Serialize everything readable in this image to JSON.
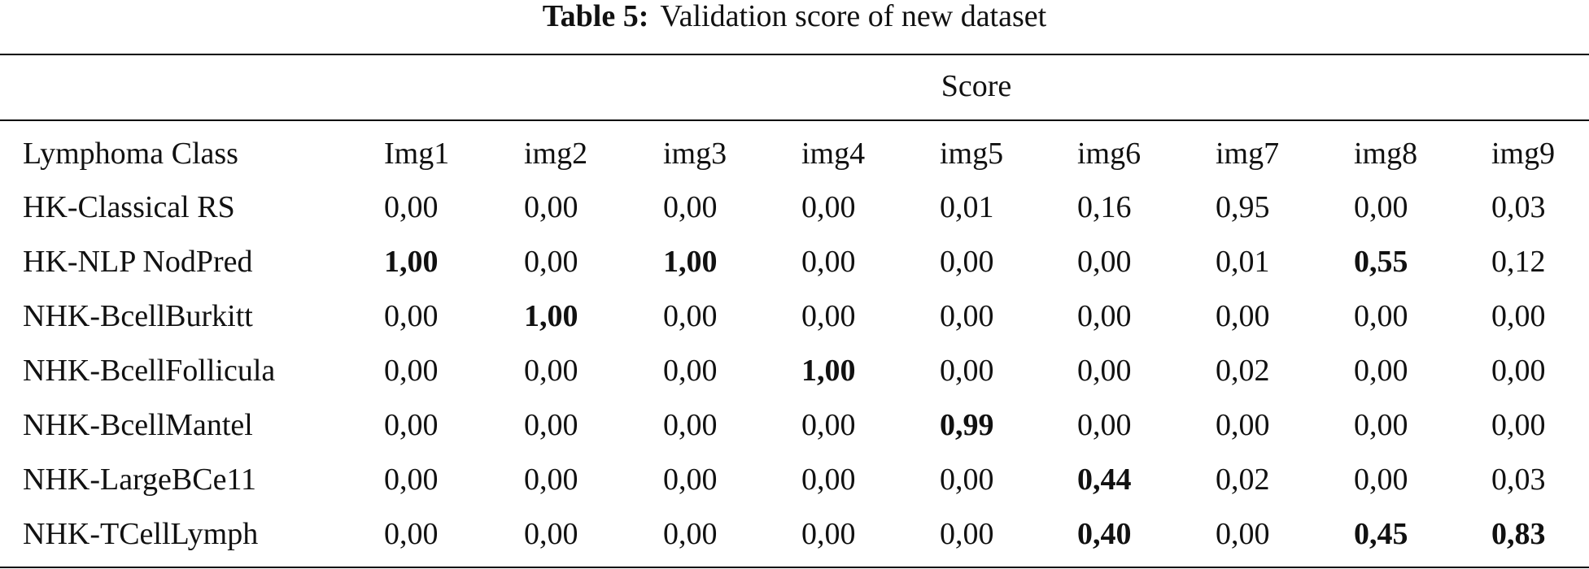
{
  "caption": {
    "label": "Table 5:",
    "text": "Validation score of new dataset"
  },
  "table": {
    "group_header": "Score",
    "columns": [
      "Lymphoma Class",
      "Img1",
      "img2",
      "img3",
      "img4",
      "img5",
      "img6",
      "img7",
      "img8",
      "img9"
    ],
    "rows": [
      {
        "label": "HK-Classical RS",
        "values": [
          "0,00",
          "0,00",
          "0,00",
          "0,00",
          "0,01",
          "0,16",
          "0,95",
          "0,00",
          "0,03"
        ],
        "bold": [
          false,
          false,
          false,
          false,
          false,
          false,
          false,
          false,
          false
        ]
      },
      {
        "label": "HK-NLP NodPred",
        "values": [
          "1,00",
          "0,00",
          "1,00",
          "0,00",
          "0,00",
          "0,00",
          "0,01",
          "0,55",
          "0,12"
        ],
        "bold": [
          true,
          false,
          true,
          false,
          false,
          false,
          false,
          true,
          false
        ]
      },
      {
        "label": "NHK-BcellBurkitt",
        "values": [
          "0,00",
          "1,00",
          "0,00",
          "0,00",
          "0,00",
          "0,00",
          "0,00",
          "0,00",
          "0,00"
        ],
        "bold": [
          false,
          true,
          false,
          false,
          false,
          false,
          false,
          false,
          false
        ]
      },
      {
        "label": "NHK-BcellFollicula",
        "values": [
          "0,00",
          "0,00",
          "0,00",
          "1,00",
          "0,00",
          "0,00",
          "0,02",
          "0,00",
          "0,00"
        ],
        "bold": [
          false,
          false,
          false,
          true,
          false,
          false,
          false,
          false,
          false
        ]
      },
      {
        "label": "NHK-BcellMantel",
        "values": [
          "0,00",
          "0,00",
          "0,00",
          "0,00",
          "0,99",
          "0,00",
          "0,00",
          "0,00",
          "0,00"
        ],
        "bold": [
          false,
          false,
          false,
          false,
          true,
          false,
          false,
          false,
          false
        ]
      },
      {
        "label": "NHK-LargeBCe11",
        "values": [
          "0,00",
          "0,00",
          "0,00",
          "0,00",
          "0,00",
          "0,44",
          "0,02",
          "0,00",
          "0,03"
        ],
        "bold": [
          false,
          false,
          false,
          false,
          false,
          true,
          false,
          false,
          false
        ]
      },
      {
        "label": "NHK-TCellLymph",
        "values": [
          "0,00",
          "0,00",
          "0,00",
          "0,00",
          "0,00",
          "0,40",
          "0,00",
          "0,45",
          "0,83"
        ],
        "bold": [
          false,
          false,
          false,
          false,
          false,
          true,
          false,
          true,
          true
        ]
      }
    ]
  }
}
